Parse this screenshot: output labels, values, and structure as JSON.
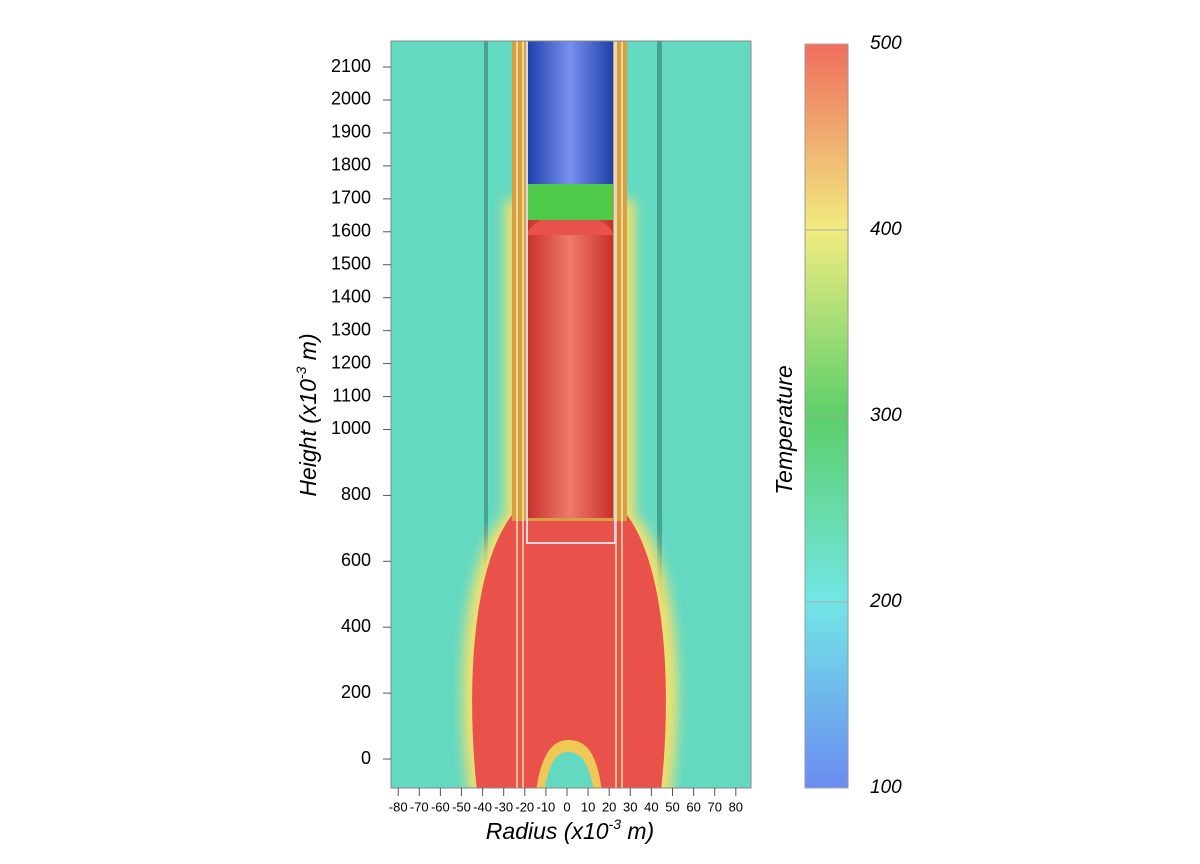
{
  "chart_data": {
    "type": "heatmap",
    "x_label": {
      "text": "Radius (x10",
      "sup": "-3",
      "unit": " m)"
    },
    "y_label": {
      "text": "Height (x10",
      "sup": "-3",
      "unit": " m)"
    },
    "xlim": [
      -83.4,
      87.2
    ],
    "xticks": [
      -80,
      -70,
      -60,
      -50,
      -40,
      -30,
      -20,
      -10,
      0,
      10,
      20,
      30,
      40,
      50,
      60,
      70,
      80
    ],
    "ylim": [
      -88,
      2179
    ],
    "yticks": [
      0,
      200,
      400,
      600,
      800,
      1000,
      1100,
      1200,
      1300,
      1400,
      1500,
      1600,
      1700,
      1800,
      1900,
      2000,
      2100
    ],
    "colorbar": {
      "label": "Temperature",
      "lim": [
        100,
        500
      ],
      "ticks": [
        100,
        200,
        300,
        400,
        500
      ]
    }
  }
}
